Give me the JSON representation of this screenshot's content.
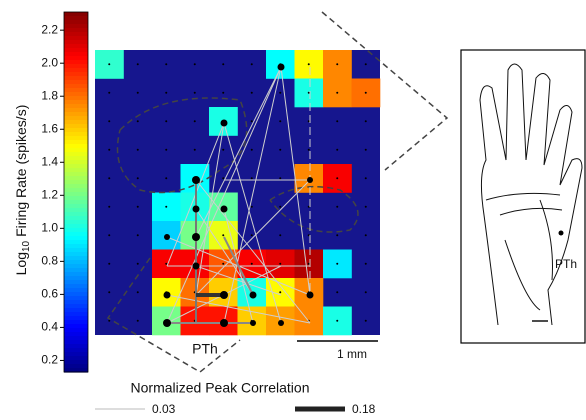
{
  "chart_data": {
    "type": "heatmap",
    "colormap": "jet",
    "ylabel_parts": [
      "Log",
      "10",
      "Firing Rate (spikes/s)"
    ],
    "ylim": [
      0.13,
      2.31
    ],
    "yticks": [
      0.2,
      0.4,
      0.6,
      0.8,
      {
        "value": 1,
        "label": "1.0"
      },
      1.2,
      1.4,
      1.6,
      1.8,
      {
        "value": 2,
        "label": "2.0"
      },
      2.2
    ],
    "background_color": "#16168e",
    "values": [
      [
        1.05,
        null,
        null,
        null,
        null,
        null,
        0.95,
        1.5,
        1.75,
        null
      ],
      [
        null,
        null,
        null,
        null,
        null,
        null,
        null,
        1.0,
        1.75,
        1.8
      ],
      [
        null,
        null,
        null,
        null,
        1.0,
        null,
        null,
        null,
        null,
        null
      ],
      [
        null,
        null,
        null,
        null,
        null,
        null,
        null,
        null,
        null,
        null
      ],
      [
        null,
        null,
        null,
        0.95,
        null,
        null,
        null,
        1.75,
        2.05,
        null
      ],
      [
        null,
        null,
        0.95,
        1.0,
        1.15,
        null,
        null,
        null,
        null,
        null
      ],
      [
        null,
        null,
        0.85,
        1.2,
        1.45,
        null,
        null,
        null,
        null,
        null
      ],
      [
        null,
        null,
        2.05,
        2.05,
        1.85,
        2.05,
        2.1,
        2.2,
        0.9,
        null
      ],
      [
        null,
        null,
        1.5,
        1.8,
        1.6,
        1.0,
        1.5,
        1.75,
        null,
        null
      ],
      [
        null,
        null,
        1.2,
        2.0,
        2.0,
        1.6,
        1.7,
        1.75,
        1.0,
        null
      ]
    ],
    "region_label": "PTh",
    "scale_bar": "1 mm",
    "legend": {
      "title": "Normalized Peak Correlation",
      "entries": [
        0.03,
        0.18
      ]
    },
    "inset_label": "PTh"
  }
}
